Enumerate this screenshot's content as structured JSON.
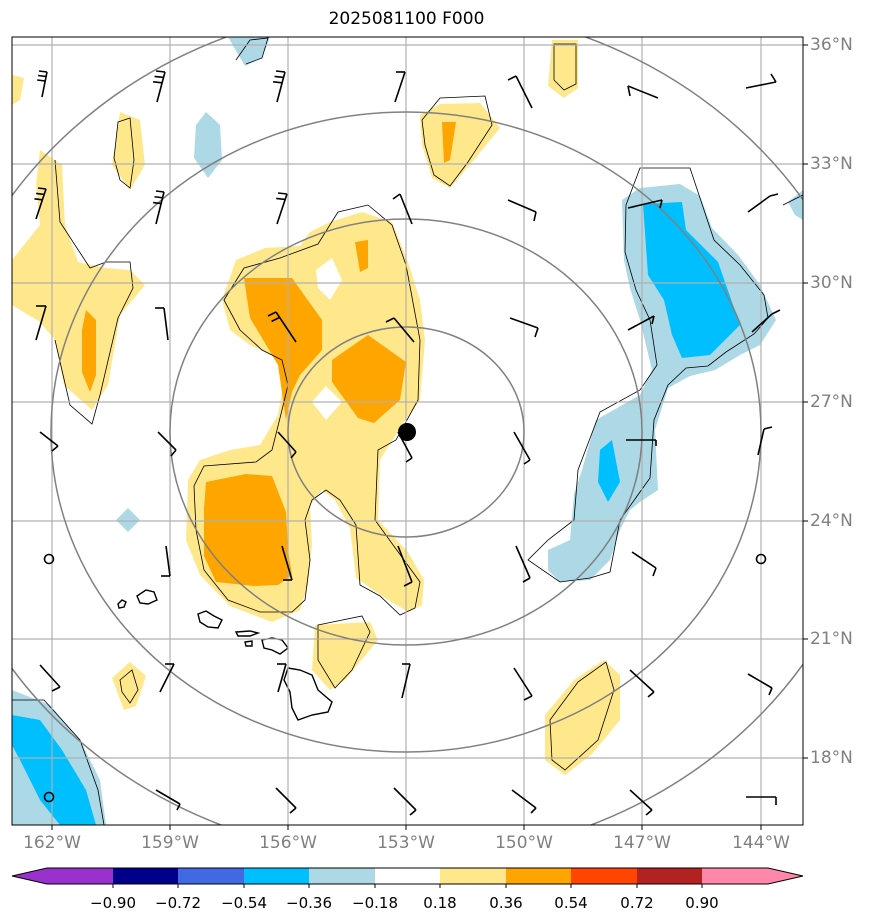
{
  "title": "2025081100 F000",
  "lat_labels": [
    "36°N",
    "33°N",
    "30°N",
    "27°N",
    "24°N",
    "21°N",
    "18°N"
  ],
  "lon_labels": [
    "162°W",
    "159°W",
    "156°W",
    "153°W",
    "150°W",
    "147°W",
    "144°W"
  ],
  "colorbar": {
    "tick_labels": [
      "−0.90",
      "−0.72",
      "−0.54",
      "−0.36",
      "−0.18",
      "0.18",
      "0.36",
      "0.54",
      "0.72",
      "0.90"
    ],
    "colors": [
      "#9932cc",
      "#00008b",
      "#4169e1",
      "#00bfff",
      "#add8e6",
      "#ffffff",
      "#ffe88c",
      "#ffa500",
      "#ff4500",
      "#b22222",
      "#ff88aa"
    ]
  },
  "fill_colors": {
    "light_yellow": "#ffe88c",
    "orange": "#ffa500",
    "light_blue": "#add8e6",
    "deep_sky_blue": "#00bfff"
  },
  "grid_color": "#b0b0b0",
  "range_ring_color": "#808080",
  "center_marker": "black-dot"
}
